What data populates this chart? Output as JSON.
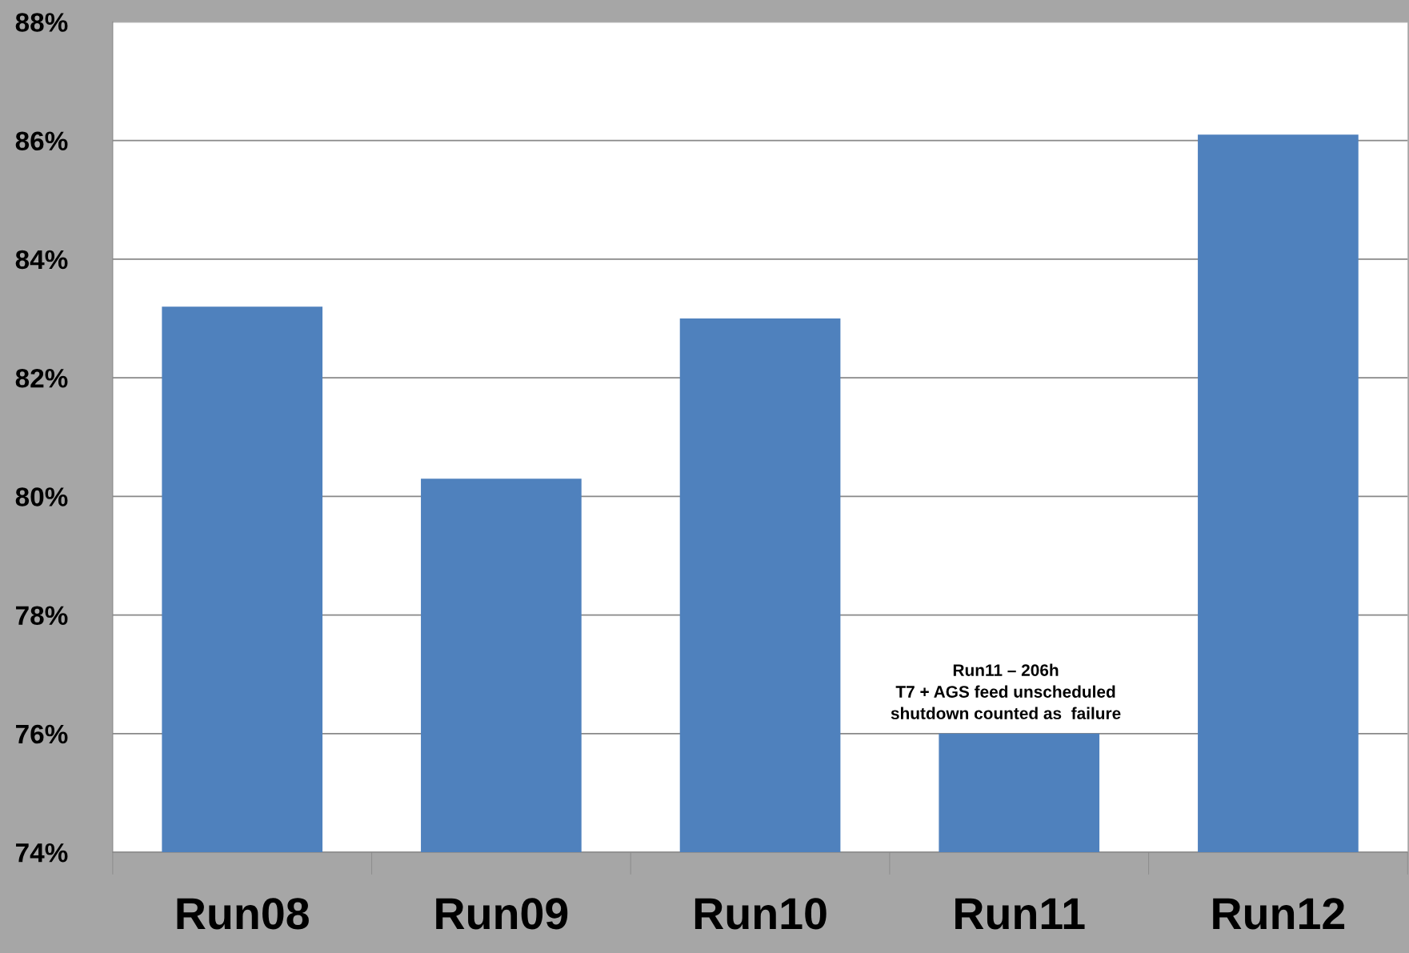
{
  "chart_data": {
    "type": "bar",
    "categories": [
      "Run08",
      "Run09",
      "Run10",
      "Run11",
      "Run12"
    ],
    "values": [
      83.2,
      80.3,
      83.0,
      76.0,
      86.1
    ],
    "color": "#4f81bd",
    "ylim": [
      74,
      88
    ],
    "yticks": [
      {
        "value": 74,
        "label": "74%"
      },
      {
        "value": 76,
        "label": "76%"
      },
      {
        "value": 78,
        "label": "78%"
      },
      {
        "value": 80,
        "label": "80%"
      },
      {
        "value": 82,
        "label": "82%"
      },
      {
        "value": 84,
        "label": "84%"
      },
      {
        "value": 86,
        "label": "86%"
      },
      {
        "value": 88,
        "label": "88%"
      }
    ],
    "grid": "y",
    "legend": false,
    "annotations": [
      {
        "text": "Run11 – 206h\nT7 + AGS feed unscheduled\nshutdown counted as  failure",
        "x": "Run11",
        "y": 76.0
      }
    ]
  }
}
